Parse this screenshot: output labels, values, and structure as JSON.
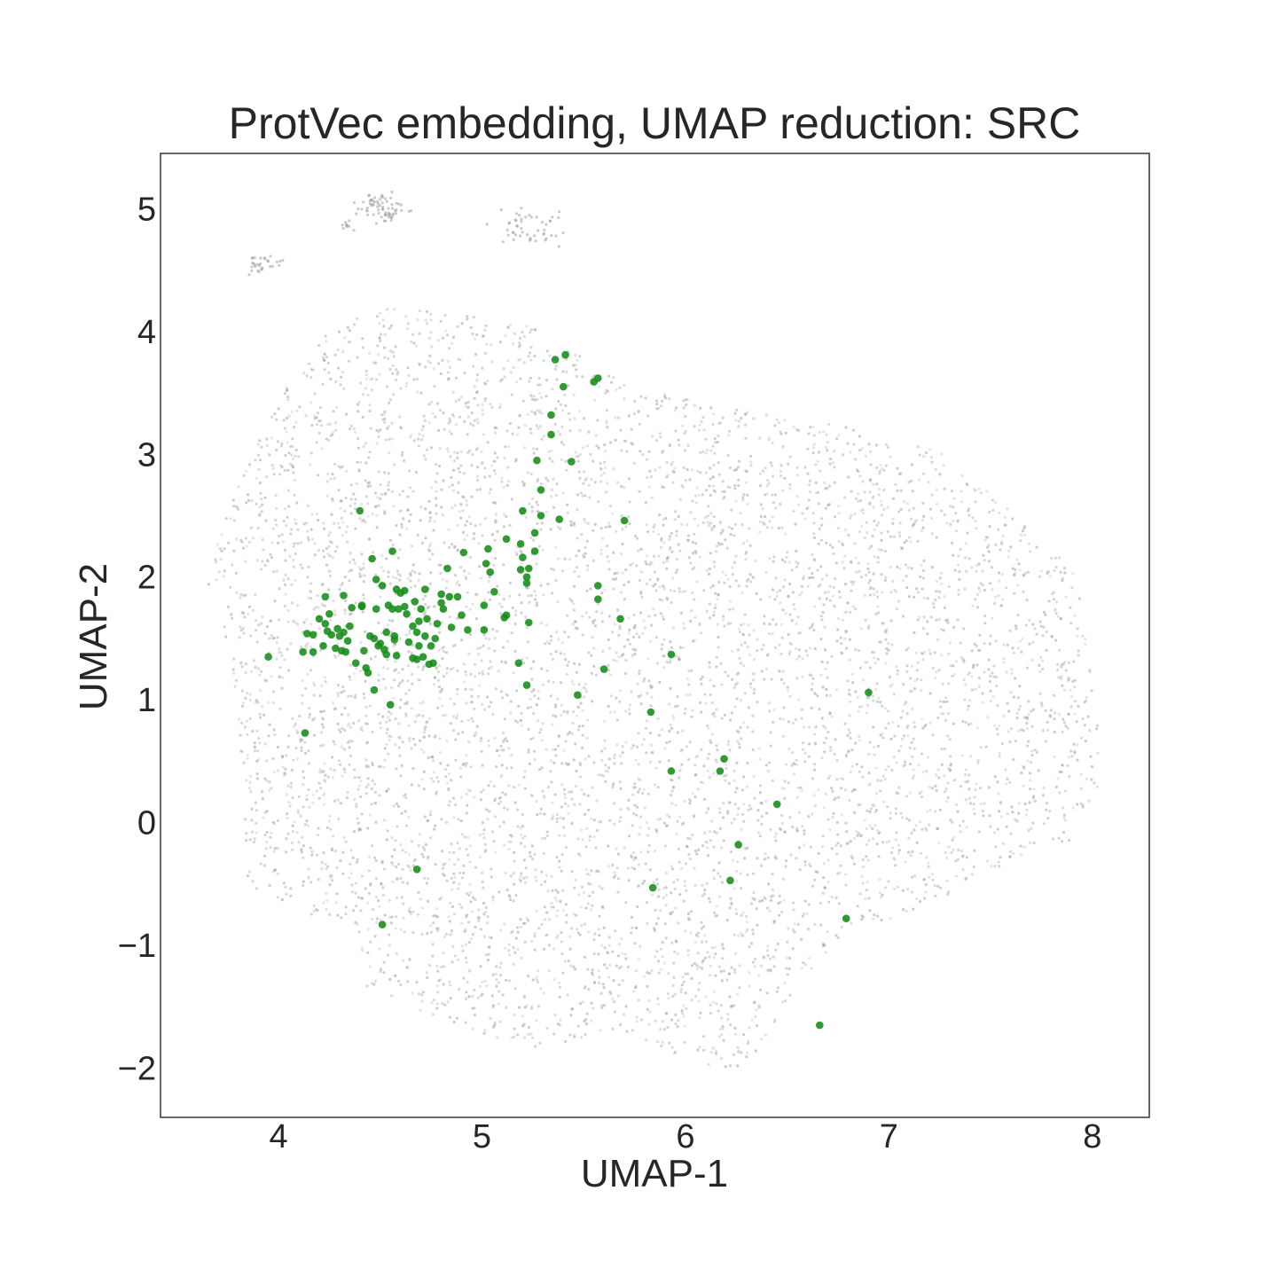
{
  "chart_data": {
    "type": "scatter",
    "title": "ProtVec embedding, UMAP reduction: SRC",
    "xlabel": "UMAP-1",
    "ylabel": "UMAP-2",
    "xlim": [
      3.42,
      8.28
    ],
    "ylim": [
      -2.4,
      5.45
    ],
    "grid": false,
    "x_ticks": [
      4,
      5,
      6,
      7,
      8
    ],
    "x_tick_labels": [
      "4",
      "5",
      "6",
      "7",
      "8"
    ],
    "y_ticks": [
      -2,
      -1,
      0,
      1,
      2,
      3,
      4,
      5
    ],
    "y_tick_labels": [
      "−2",
      "−1",
      "0",
      "1",
      "2",
      "3",
      "4",
      "5"
    ],
    "colors": {
      "background_points": "#9e9e9e",
      "highlight_points": "#168c16",
      "axes": "#262626"
    },
    "background_cloud_note_count": 6000,
    "series": [
      {
        "color": "#168c16",
        "points": [
          [
            3.95,
            1.35
          ],
          [
            4.13,
            0.73
          ],
          [
            4.12,
            1.39
          ],
          [
            4.14,
            1.54
          ],
          [
            4.17,
            1.53
          ],
          [
            4.17,
            1.39
          ],
          [
            4.2,
            1.66
          ],
          [
            4.22,
            1.44
          ],
          [
            4.23,
            1.84
          ],
          [
            4.23,
            1.62
          ],
          [
            4.24,
            1.56
          ],
          [
            4.25,
            1.7
          ],
          [
            4.26,
            1.53
          ],
          [
            4.28,
            1.42
          ],
          [
            4.29,
            1.58
          ],
          [
            4.3,
            1.52
          ],
          [
            4.31,
            1.4
          ],
          [
            4.32,
            1.85
          ],
          [
            4.32,
            1.55
          ],
          [
            4.33,
            1.39
          ],
          [
            4.34,
            1.48
          ],
          [
            4.35,
            1.6
          ],
          [
            4.36,
            1.75
          ],
          [
            4.38,
            1.3
          ],
          [
            4.4,
            2.54
          ],
          [
            4.41,
            1.77
          ],
          [
            4.41,
            1.76
          ],
          [
            4.42,
            1.4
          ],
          [
            4.43,
            1.26
          ],
          [
            4.44,
            1.22
          ],
          [
            4.45,
            1.52
          ],
          [
            4.46,
            2.15
          ],
          [
            4.47,
            1.08
          ],
          [
            4.47,
            1.5
          ],
          [
            4.48,
            1.98
          ],
          [
            4.48,
            1.74
          ],
          [
            4.49,
            1.44
          ],
          [
            4.5,
            1.46
          ],
          [
            4.51,
            1.93
          ],
          [
            4.52,
            1.41
          ],
          [
            4.53,
            1.55
          ],
          [
            4.53,
            1.37
          ],
          [
            4.54,
            1.77
          ],
          [
            4.55,
            0.96
          ],
          [
            4.56,
            2.21
          ],
          [
            4.56,
            1.74
          ],
          [
            4.57,
            1.52
          ],
          [
            4.57,
            1.49
          ],
          [
            4.58,
            1.9
          ],
          [
            4.58,
            1.36
          ],
          [
            4.59,
            1.74
          ],
          [
            4.6,
            1.87
          ],
          [
            4.62,
            1.89
          ],
          [
            4.62,
            1.76
          ],
          [
            4.63,
            1.7
          ],
          [
            4.64,
            1.47
          ],
          [
            4.66,
            1.6
          ],
          [
            4.66,
            1.34
          ],
          [
            4.67,
            1.8
          ],
          [
            4.68,
            1.55
          ],
          [
            4.68,
            1.33
          ],
          [
            4.69,
            1.64
          ],
          [
            4.69,
            1.44
          ],
          [
            4.7,
            1.74
          ],
          [
            4.71,
            1.35
          ],
          [
            4.72,
            1.9
          ],
          [
            4.72,
            1.52
          ],
          [
            4.73,
            1.66
          ],
          [
            4.74,
            1.29
          ],
          [
            4.75,
            1.44
          ],
          [
            4.76,
            1.3
          ],
          [
            4.77,
            1.5
          ],
          [
            4.78,
            1.62
          ],
          [
            4.8,
            1.86
          ],
          [
            4.8,
            1.79
          ],
          [
            4.81,
            1.74
          ],
          [
            4.83,
            2.07
          ],
          [
            4.84,
            1.84
          ],
          [
            4.85,
            1.59
          ],
          [
            4.88,
            1.84
          ],
          [
            4.9,
            1.69
          ],
          [
            4.91,
            2.2
          ],
          [
            4.93,
            1.57
          ],
          [
            5.01,
            1.57
          ],
          [
            5.01,
            1.77
          ],
          [
            5.02,
            2.11
          ],
          [
            5.03,
            2.23
          ],
          [
            5.04,
            2.04
          ],
          [
            5.06,
            1.88
          ],
          [
            5.11,
            1.67
          ],
          [
            5.12,
            2.31
          ],
          [
            5.12,
            1.69
          ],
          [
            5.18,
            1.3
          ],
          [
            5.19,
            2.27
          ],
          [
            5.19,
            2.06
          ],
          [
            5.2,
            2.16
          ],
          [
            5.2,
            2.54
          ],
          [
            5.22,
            1.12
          ],
          [
            5.22,
            2.0
          ],
          [
            5.22,
            1.95
          ],
          [
            5.23,
            2.07
          ],
          [
            5.23,
            1.63
          ],
          [
            5.26,
            2.21
          ],
          [
            5.26,
            2.36
          ],
          [
            5.27,
            2.95
          ],
          [
            5.29,
            2.5
          ],
          [
            5.29,
            2.71
          ],
          [
            5.34,
            3.32
          ],
          [
            5.34,
            3.16
          ],
          [
            5.36,
            3.77
          ],
          [
            5.38,
            2.47
          ],
          [
            5.4,
            3.55
          ],
          [
            5.41,
            3.81
          ],
          [
            5.44,
            2.94
          ],
          [
            5.47,
            1.04
          ],
          [
            5.55,
            3.59
          ],
          [
            5.57,
            3.62
          ],
          [
            5.57,
            1.93
          ],
          [
            5.57,
            1.82
          ],
          [
            5.6,
            1.25
          ],
          [
            5.68,
            1.66
          ],
          [
            5.7,
            2.46
          ],
          [
            5.83,
            0.9
          ],
          [
            5.84,
            -0.53
          ],
          [
            5.93,
            0.42
          ],
          [
            5.93,
            1.37
          ],
          [
            6.17,
            0.42
          ],
          [
            6.19,
            0.52
          ],
          [
            6.22,
            -0.47
          ],
          [
            6.26,
            -0.18
          ],
          [
            6.45,
            0.15
          ],
          [
            6.66,
            -1.65
          ],
          [
            6.79,
            -0.78
          ],
          [
            6.9,
            1.06
          ],
          [
            4.68,
            -0.38
          ],
          [
            4.51,
            -0.83
          ]
        ]
      }
    ]
  }
}
